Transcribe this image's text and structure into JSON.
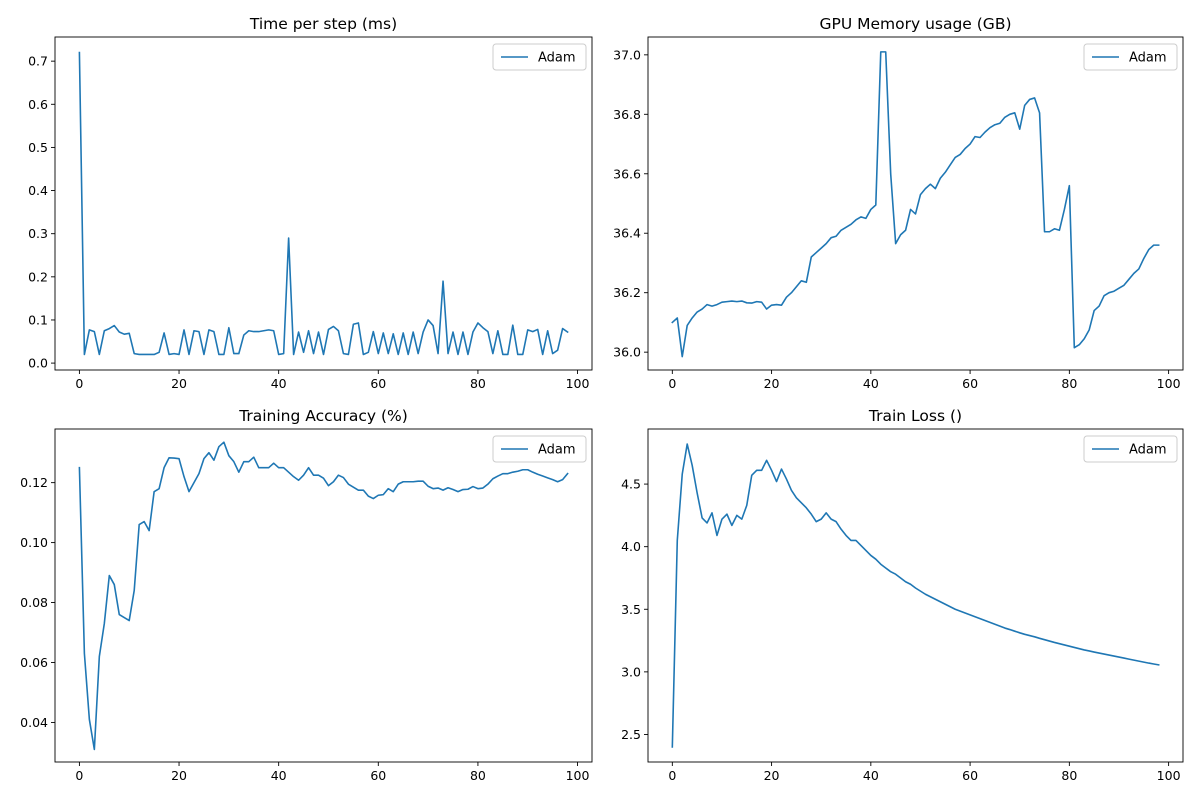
{
  "chart_data": [
    {
      "type": "line",
      "title": "Time per step (ms)",
      "xlabel": "",
      "ylabel": "",
      "xlim": [
        -4.9,
        102.9
      ],
      "ylim": [
        -0.016,
        0.756
      ],
      "xticks": [
        0,
        20,
        40,
        60,
        80,
        100
      ],
      "yticks": [
        0.0,
        0.1,
        0.2,
        0.3,
        0.4,
        0.5,
        0.6,
        0.7
      ],
      "ytick_labels": [
        "0.0",
        "0.1",
        "0.2",
        "0.3",
        "0.4",
        "0.5",
        "0.6",
        "0.7"
      ],
      "grid": false,
      "legend": "top-right",
      "series": [
        {
          "name": "Adam",
          "color": "#1f77b4",
          "x": [
            0,
            1,
            2,
            3,
            4,
            5,
            6,
            7,
            8,
            9,
            10,
            11,
            12,
            13,
            14,
            15,
            16,
            17,
            18,
            19,
            20,
            21,
            22,
            23,
            24,
            25,
            26,
            27,
            28,
            29,
            30,
            31,
            32,
            33,
            34,
            35,
            36,
            37,
            38,
            39,
            40,
            41,
            42,
            43,
            44,
            45,
            46,
            47,
            48,
            49,
            50,
            51,
            52,
            53,
            54,
            55,
            56,
            57,
            58,
            59,
            60,
            61,
            62,
            63,
            64,
            65,
            66,
            67,
            68,
            69,
            70,
            71,
            72,
            73,
            74,
            75,
            76,
            77,
            78,
            79,
            80,
            81,
            82,
            83,
            84,
            85,
            86,
            87,
            88,
            89,
            90,
            91,
            92,
            93,
            94,
            95,
            96,
            97,
            98
          ],
          "y": [
            0.72,
            0.02,
            0.077,
            0.073,
            0.02,
            0.075,
            0.08,
            0.087,
            0.072,
            0.067,
            0.069,
            0.022,
            0.02,
            0.02,
            0.02,
            0.02,
            0.025,
            0.07,
            0.02,
            0.022,
            0.02,
            0.077,
            0.02,
            0.075,
            0.073,
            0.02,
            0.077,
            0.073,
            0.02,
            0.02,
            0.082,
            0.022,
            0.022,
            0.065,
            0.075,
            0.073,
            0.073,
            0.075,
            0.077,
            0.075,
            0.02,
            0.022,
            0.29,
            0.02,
            0.072,
            0.025,
            0.075,
            0.022,
            0.072,
            0.02,
            0.078,
            0.085,
            0.075,
            0.022,
            0.02,
            0.09,
            0.093,
            0.02,
            0.025,
            0.073,
            0.022,
            0.07,
            0.022,
            0.068,
            0.02,
            0.07,
            0.02,
            0.072,
            0.022,
            0.072,
            0.1,
            0.087,
            0.022,
            0.19,
            0.022,
            0.072,
            0.02,
            0.072,
            0.02,
            0.072,
            0.093,
            0.082,
            0.073,
            0.022,
            0.075,
            0.02,
            0.02,
            0.088,
            0.02,
            0.02,
            0.077,
            0.073,
            0.078,
            0.02,
            0.075,
            0.022,
            0.03,
            0.08,
            0.072
          ]
        }
      ]
    },
    {
      "type": "line",
      "title": "GPU Memory usage (GB)",
      "xlabel": "",
      "ylabel": "",
      "xlim": [
        -4.9,
        102.9
      ],
      "ylim": [
        35.94,
        37.06
      ],
      "xticks": [
        0,
        20,
        40,
        60,
        80,
        100
      ],
      "yticks": [
        36.0,
        36.2,
        36.4,
        36.6,
        36.8,
        37.0
      ],
      "ytick_labels": [
        "36.0",
        "36.2",
        "36.4",
        "36.6",
        "36.8",
        "37.0"
      ],
      "grid": false,
      "legend": "top-right",
      "series": [
        {
          "name": "Adam",
          "color": "#1f77b4",
          "x": [
            0,
            1,
            2,
            3,
            4,
            5,
            6,
            7,
            8,
            9,
            10,
            11,
            12,
            13,
            14,
            15,
            16,
            17,
            18,
            19,
            20,
            21,
            22,
            23,
            24,
            25,
            26,
            27,
            28,
            29,
            30,
            31,
            32,
            33,
            34,
            35,
            36,
            37,
            38,
            39,
            40,
            41,
            42,
            43,
            44,
            45,
            46,
            47,
            48,
            49,
            50,
            51,
            52,
            53,
            54,
            55,
            56,
            57,
            58,
            59,
            60,
            61,
            62,
            63,
            64,
            65,
            66,
            67,
            68,
            69,
            70,
            71,
            72,
            73,
            74,
            75,
            76,
            77,
            78,
            79,
            80,
            81,
            82,
            83,
            84,
            85,
            86,
            87,
            88,
            89,
            90,
            91,
            92,
            93,
            94,
            95,
            96,
            97,
            98
          ],
          "y": [
            36.1,
            36.115,
            35.985,
            36.09,
            36.115,
            36.135,
            36.145,
            36.16,
            36.155,
            36.16,
            36.168,
            36.17,
            36.172,
            36.17,
            36.172,
            36.166,
            36.165,
            36.17,
            36.168,
            36.145,
            36.158,
            36.16,
            36.158,
            36.185,
            36.2,
            36.22,
            36.24,
            36.235,
            36.32,
            36.335,
            36.35,
            36.365,
            36.385,
            36.39,
            36.41,
            36.42,
            36.43,
            36.445,
            36.455,
            36.45,
            36.48,
            36.495,
            37.01,
            37.01,
            36.6,
            36.365,
            36.395,
            36.41,
            36.48,
            36.465,
            36.53,
            36.55,
            36.565,
            36.55,
            36.585,
            36.605,
            36.63,
            36.655,
            36.665,
            36.685,
            36.7,
            36.725,
            36.722,
            36.74,
            36.755,
            36.765,
            36.77,
            36.79,
            36.8,
            36.805,
            36.75,
            36.83,
            36.85,
            36.855,
            36.805,
            36.405,
            36.405,
            36.415,
            36.41,
            36.48,
            36.56,
            36.015,
            36.025,
            36.045,
            36.075,
            36.14,
            36.155,
            36.19,
            36.2,
            36.205,
            36.215,
            36.225,
            36.245,
            36.265,
            36.28,
            36.315,
            36.345,
            36.36,
            36.36
          ]
        }
      ]
    },
    {
      "type": "line",
      "title": "Training Accuracy (%)",
      "xlabel": "",
      "ylabel": "",
      "xlim": [
        -4.9,
        102.9
      ],
      "ylim": [
        0.0268,
        0.1379
      ],
      "xticks": [
        0,
        20,
        40,
        60,
        80,
        100
      ],
      "yticks": [
        0.04,
        0.06,
        0.08,
        0.1,
        0.12
      ],
      "ytick_labels": [
        "0.04",
        "0.06",
        "0.08",
        "0.10",
        "0.12"
      ],
      "grid": false,
      "legend": "top-right",
      "series": [
        {
          "name": "Adam",
          "color": "#1f77b4",
          "x": [
            0,
            1,
            2,
            3,
            4,
            5,
            6,
            7,
            8,
            9,
            10,
            11,
            12,
            13,
            14,
            15,
            16,
            17,
            18,
            19,
            20,
            21,
            22,
            23,
            24,
            25,
            26,
            27,
            28,
            29,
            30,
            31,
            32,
            33,
            34,
            35,
            36,
            37,
            38,
            39,
            40,
            41,
            42,
            43,
            44,
            45,
            46,
            47,
            48,
            49,
            50,
            51,
            52,
            53,
            54,
            55,
            56,
            57,
            58,
            59,
            60,
            61,
            62,
            63,
            64,
            65,
            66,
            67,
            68,
            69,
            70,
            71,
            72,
            73,
            74,
            75,
            76,
            77,
            78,
            79,
            80,
            81,
            82,
            83,
            84,
            85,
            86,
            87,
            88,
            89,
            90,
            91,
            92,
            93,
            94,
            95,
            96,
            97,
            98
          ],
          "y": [
            0.125,
            0.063,
            0.041,
            0.031,
            0.062,
            0.073,
            0.089,
            0.086,
            0.076,
            0.075,
            0.074,
            0.084,
            0.106,
            0.107,
            0.104,
            0.117,
            0.118,
            0.125,
            0.1283,
            0.1282,
            0.128,
            0.122,
            0.117,
            0.12,
            0.123,
            0.128,
            0.13,
            0.1275,
            0.132,
            0.1335,
            0.129,
            0.127,
            0.1235,
            0.127,
            0.127,
            0.1285,
            0.125,
            0.125,
            0.125,
            0.1265,
            0.125,
            0.125,
            0.1235,
            0.122,
            0.1208,
            0.1225,
            0.125,
            0.1225,
            0.1225,
            0.1215,
            0.119,
            0.1203,
            0.1225,
            0.1217,
            0.1195,
            0.1185,
            0.1175,
            0.1175,
            0.1155,
            0.1147,
            0.1158,
            0.116,
            0.118,
            0.117,
            0.1195,
            0.1203,
            0.1203,
            0.1203,
            0.1205,
            0.1205,
            0.1188,
            0.118,
            0.1182,
            0.1175,
            0.1183,
            0.1177,
            0.117,
            0.1177,
            0.1178,
            0.1187,
            0.118,
            0.1182,
            0.1195,
            0.1213,
            0.1222,
            0.123,
            0.123,
            0.1235,
            0.1238,
            0.1243,
            0.1243,
            0.1235,
            0.1228,
            0.1222,
            0.1216,
            0.121,
            0.1203,
            0.121,
            0.123
          ]
        }
      ]
    },
    {
      "type": "line",
      "title": "Train Loss ()",
      "xlabel": "",
      "ylabel": "",
      "xlim": [
        -4.9,
        102.9
      ],
      "ylim": [
        2.28,
        4.94
      ],
      "xticks": [
        0,
        20,
        40,
        60,
        80,
        100
      ],
      "yticks": [
        2.5,
        3.0,
        3.5,
        4.0,
        4.5
      ],
      "ytick_labels": [
        "2.5",
        "3.0",
        "3.5",
        "4.0",
        "4.5"
      ],
      "grid": false,
      "legend": "top-right",
      "series": [
        {
          "name": "Adam",
          "color": "#1f77b4",
          "x": [
            0,
            1,
            2,
            3,
            4,
            5,
            6,
            7,
            8,
            9,
            10,
            11,
            12,
            13,
            14,
            15,
            16,
            17,
            18,
            19,
            20,
            21,
            22,
            23,
            24,
            25,
            26,
            27,
            28,
            29,
            30,
            31,
            32,
            33,
            34,
            35,
            36,
            37,
            38,
            39,
            40,
            41,
            42,
            43,
            44,
            45,
            46,
            47,
            48,
            49,
            50,
            51,
            52,
            53,
            54,
            55,
            56,
            57,
            58,
            59,
            60,
            61,
            62,
            63,
            64,
            65,
            66,
            67,
            68,
            69,
            70,
            71,
            72,
            73,
            74,
            75,
            76,
            77,
            78,
            79,
            80,
            81,
            82,
            83,
            84,
            85,
            86,
            87,
            88,
            89,
            90,
            91,
            92,
            93,
            94,
            95,
            96,
            97,
            98
          ],
          "y": [
            2.4,
            4.05,
            4.58,
            4.82,
            4.65,
            4.43,
            4.23,
            4.19,
            4.27,
            4.09,
            4.22,
            4.26,
            4.17,
            4.25,
            4.22,
            4.33,
            4.57,
            4.61,
            4.61,
            4.69,
            4.61,
            4.52,
            4.62,
            4.54,
            4.45,
            4.39,
            4.35,
            4.31,
            4.26,
            4.2,
            4.22,
            4.27,
            4.22,
            4.2,
            4.14,
            4.09,
            4.05,
            4.05,
            4.01,
            3.97,
            3.93,
            3.9,
            3.86,
            3.83,
            3.8,
            3.78,
            3.75,
            3.72,
            3.7,
            3.67,
            3.645,
            3.62,
            3.6,
            3.58,
            3.56,
            3.54,
            3.52,
            3.5,
            3.485,
            3.47,
            3.455,
            3.44,
            3.425,
            3.41,
            3.395,
            3.38,
            3.365,
            3.35,
            3.338,
            3.325,
            3.312,
            3.3,
            3.29,
            3.28,
            3.268,
            3.257,
            3.246,
            3.235,
            3.225,
            3.215,
            3.205,
            3.195,
            3.185,
            3.175,
            3.167,
            3.158,
            3.15,
            3.142,
            3.134,
            3.126,
            3.118,
            3.11,
            3.102,
            3.094,
            3.086,
            3.078,
            3.07,
            3.063,
            3.056
          ]
        }
      ]
    }
  ]
}
